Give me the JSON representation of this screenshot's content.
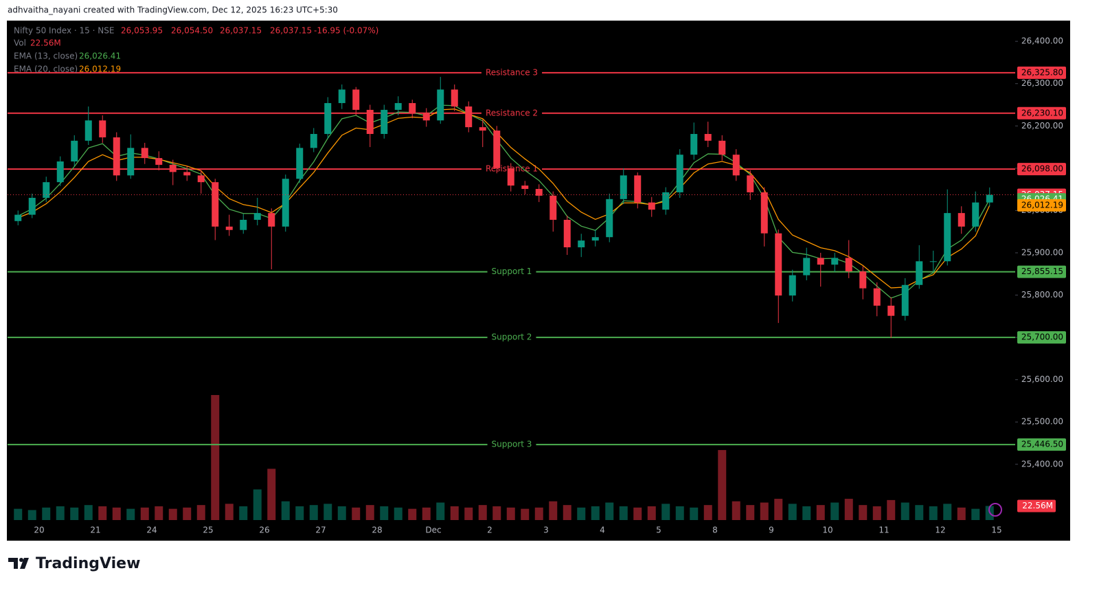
{
  "header": {
    "credit": "adhvaitha_nayani created with TradingView.com, Dec 12, 2025 16:23 UTC+5:30"
  },
  "footer": {
    "logo": "TradingView"
  },
  "chart_data": {
    "type": "candlestick",
    "symbol": "Nifty 50 Index · 15 · NSE",
    "ohlc_legend": {
      "open": {
        "value": 26053.95,
        "label": "26,053.95"
      },
      "high": {
        "value": 26054.5,
        "label": "26,054.50"
      },
      "low": {
        "value": 26037.15,
        "label": "26,037.15"
      },
      "close": {
        "value": 26037.15,
        "label": "26,037.15"
      },
      "change": "-16.95 (-0.07%)"
    },
    "volume_name": "Vol",
    "volume_last": {
      "value": 22.56,
      "label": "22.56M"
    },
    "last_price": {
      "value": 26037.15,
      "label": "26,037.15"
    },
    "up_color": "#089981",
    "down_color": "#f23645",
    "categories": [
      null,
      null,
      "20",
      null,
      null,
      null,
      "21",
      null,
      null,
      null,
      "24",
      null,
      null,
      null,
      "25",
      null,
      null,
      null,
      "26",
      null,
      null,
      null,
      "27",
      null,
      null,
      null,
      "28",
      null,
      null,
      null,
      "Dec",
      null,
      null,
      null,
      "2",
      null,
      null,
      null,
      "3",
      null,
      null,
      null,
      "4",
      null,
      null,
      null,
      "5",
      null,
      null,
      null,
      "8",
      null,
      null,
      null,
      "9",
      null,
      null,
      null,
      "10",
      null,
      null,
      null,
      "11",
      null,
      null,
      null,
      "12",
      null,
      null,
      null,
      "15"
    ],
    "opens": [
      25975,
      25990,
      26030,
      26067,
      26116,
      26165,
      26213,
      26173,
      26083,
      26148,
      26124,
      26108,
      26091,
      26083,
      26067,
      25962,
      25954,
      25978,
      25994,
      25962,
      26075,
      26148,
      26181,
      26254,
      26286,
      26238,
      26181,
      26238,
      26254,
      26230,
      26213,
      26286,
      26246,
      26197,
      26189,
      26100,
      26059,
      26051,
      26035,
      25978,
      25913,
      25929,
      25937,
      26027,
      26083,
      26019,
      26002,
      26043,
      26132,
      26181,
      26165,
      26132,
      26083,
      26043,
      25946,
      25799,
      25847,
      25888,
      25872,
      25888,
      25856,
      25816,
      25775,
      25751,
      25824,
      25880,
      25880,
      25994,
      25962,
      26019,
      null
    ],
    "highs": [
      26000,
      26040,
      26080,
      26128,
      26178,
      26246,
      26225,
      26185,
      26180,
      26160,
      26140,
      26120,
      26105,
      26095,
      26075,
      25990,
      25992,
      26030,
      26005,
      26085,
      26158,
      26195,
      26268,
      26298,
      26292,
      26250,
      26250,
      26270,
      26262,
      26242,
      26316,
      26298,
      26258,
      26215,
      26200,
      26112,
      26070,
      26062,
      26045,
      25988,
      25945,
      25955,
      26040,
      26100,
      26090,
      26032,
      26055,
      26145,
      26208,
      26210,
      26178,
      26145,
      26095,
      26055,
      25955,
      25860,
      25912,
      25900,
      25900,
      25930,
      25868,
      25830,
      25795,
      25840,
      25918,
      25905,
      26050,
      26010,
      26045,
      26054.5,
      null
    ],
    "lows": [
      25965,
      25982,
      26020,
      26058,
      26105,
      26155,
      26160,
      26070,
      26075,
      26110,
      26095,
      26060,
      26070,
      26040,
      25930,
      25940,
      25945,
      25965,
      25861,
      25950,
      26065,
      26138,
      26170,
      26240,
      26225,
      26150,
      26170,
      26225,
      26218,
      26198,
      26205,
      26235,
      26185,
      26150,
      26088,
      26045,
      26038,
      26020,
      25950,
      25895,
      25890,
      25915,
      25925,
      26015,
      26005,
      25985,
      25990,
      26030,
      26120,
      26150,
      26118,
      26070,
      26025,
      25915,
      25734,
      25785,
      25835,
      25820,
      25855,
      25840,
      25790,
      25750,
      25699,
      25740,
      25815,
      25855,
      25870,
      25945,
      25950,
      26010,
      null
    ],
    "closes": [
      25990,
      26030,
      26067,
      26116,
      26165,
      26213,
      26173,
      26083,
      26148,
      26124,
      26108,
      26091,
      26083,
      26067,
      25962,
      25954,
      25978,
      25994,
      25962,
      26075,
      26148,
      26181,
      26254,
      26286,
      26238,
      26181,
      26238,
      26254,
      26230,
      26213,
      26286,
      26246,
      26197,
      26189,
      26100,
      26059,
      26051,
      26035,
      25978,
      25913,
      25929,
      25937,
      26027,
      26083,
      26019,
      26002,
      26043,
      26132,
      26181,
      26165,
      26132,
      26083,
      26043,
      25946,
      25799,
      25847,
      25888,
      25872,
      25888,
      25856,
      25816,
      25775,
      25751,
      25824,
      25880,
      25880,
      25994,
      25962,
      26019,
      26037.15,
      null
    ],
    "volumes": [
      18,
      16,
      20,
      22,
      20,
      24,
      22,
      20,
      18,
      20,
      22,
      18,
      20,
      24,
      200,
      26,
      22,
      49,
      82,
      30,
      22,
      24,
      26,
      22,
      20,
      24,
      22,
      20,
      18,
      20,
      28,
      22,
      20,
      24,
      22,
      20,
      18,
      20,
      30,
      24,
      20,
      22,
      28,
      22,
      20,
      22,
      26,
      22,
      20,
      24,
      112,
      30,
      24,
      28,
      34,
      26,
      22,
      24,
      28,
      34,
      24,
      22,
      32,
      28,
      24,
      22,
      26,
      20,
      18,
      22.56,
      null
    ],
    "vlim": [
      0,
      200
    ],
    "series": [
      {
        "name": "EMA (13, close)",
        "color": "#4caf50",
        "last_label": "26,026.41",
        "values": [
          25987,
          26004,
          26029,
          26064,
          26104,
          26148,
          26158,
          26128,
          26136,
          26131,
          26122,
          26110,
          26099,
          26086,
          26036,
          26003,
          25993,
          25993,
          25981,
          26019,
          26071,
          26115,
          26171,
          26217,
          26225,
          26207,
          26219,
          26233,
          26232,
          26224,
          26249,
          26248,
          26228,
          26212,
          26167,
          26124,
          26095,
          26071,
          26034,
          25986,
          25963,
          25953,
          25983,
          26023,
          26021,
          26013,
          26025,
          26068,
          26113,
          26134,
          26133,
          26113,
          26085,
          26029,
          25937,
          25901,
          25896,
          25886,
          25887,
          25875,
          25851,
          25821,
          25793,
          25805,
          25835,
          25853,
          25909,
          25930,
          25966,
          26026.41,
          null
        ]
      },
      {
        "name": "EMA (20, close)",
        "color": "#ff9800",
        "last_label": "26,012.19",
        "values": [
          25983,
          25996,
          26016,
          26044,
          26078,
          26116,
          26132,
          26118,
          26126,
          26126,
          26121,
          26113,
          26105,
          26094,
          26057,
          26028,
          26014,
          26008,
          25995,
          26017,
          26054,
          26090,
          26136,
          26178,
          26195,
          26191,
          26204,
          26218,
          26221,
          26219,
          26238,
          26240,
          26228,
          26217,
          26184,
          26149,
          26122,
          26098,
          26064,
          26022,
          25996,
          25979,
          25992,
          26018,
          26018,
          26014,
          26022,
          26053,
          26089,
          26110,
          26116,
          26107,
          26089,
          26049,
          25979,
          25942,
          25927,
          25912,
          25905,
          25891,
          25870,
          25843,
          25817,
          25819,
          25836,
          25848,
          25889,
          25909,
          25940,
          26012.19,
          null
        ]
      }
    ],
    "levels": [
      {
        "name": "Resistance 3",
        "level": {
          "value": 26325.8,
          "label": "26,325.80"
        },
        "color": "#f23645"
      },
      {
        "name": "Resistance 2",
        "level": {
          "value": 26230.1,
          "label": "26,230.10"
        },
        "color": "#f23645"
      },
      {
        "name": "Resistance 1",
        "level": {
          "value": 26098,
          "label": "26,098.00"
        },
        "color": "#f23645"
      },
      {
        "name": "Support 1",
        "level": {
          "value": 25855.15,
          "label": "25,855.15"
        },
        "color": "#4caf50"
      },
      {
        "name": "Support 2",
        "level": {
          "value": 25700,
          "label": "25,700.00"
        },
        "color": "#4caf50"
      },
      {
        "name": "Support 3",
        "level": {
          "value": 25446.5,
          "label": "25,446.50"
        },
        "color": "#4caf50"
      }
    ],
    "ylim": [
      25221,
      26449
    ],
    "yticks": [
      {
        "value": 25400,
        "label": "25,400.00"
      },
      {
        "value": 25500,
        "label": "25,500.00"
      },
      {
        "value": 25600,
        "label": "25,600.00"
      },
      {
        "value": 25700,
        "label": "25,700.00"
      },
      {
        "value": 25800,
        "label": "25,800.00"
      },
      {
        "value": 25900,
        "label": "25,900.00"
      },
      {
        "value": 26000,
        "label": "26,000.00"
      },
      {
        "value": 26100,
        "label": "26,100.00"
      },
      {
        "value": 26200,
        "label": "26,200.00"
      },
      {
        "value": 26300,
        "label": "26,300.00"
      },
      {
        "value": 26400,
        "label": "26,400.00"
      }
    ]
  }
}
